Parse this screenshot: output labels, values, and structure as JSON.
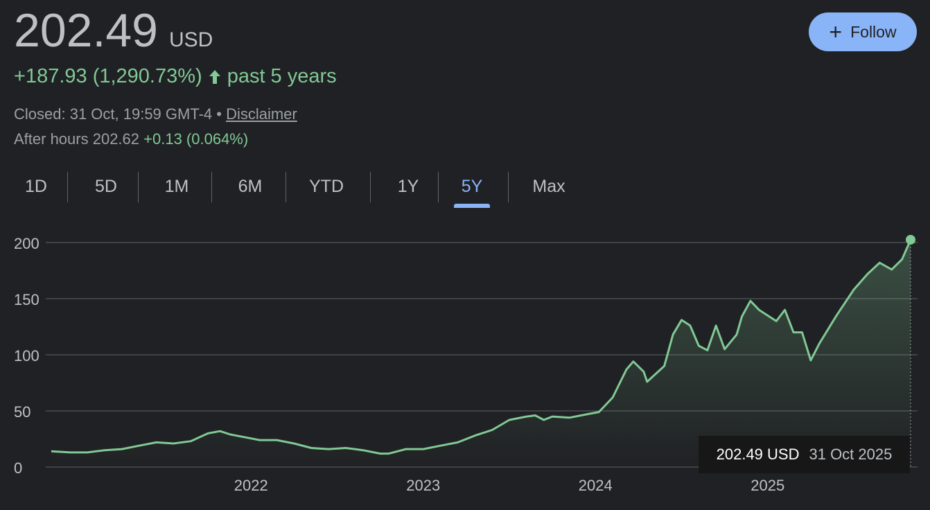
{
  "quote": {
    "price": "202.49",
    "currency": "USD",
    "change": "+187.93 (1,290.73%)",
    "period": "past 5 years",
    "closed": "Closed: 31 Oct, 19:59 GMT-4 • ",
    "disclaimer": "Disclaimer",
    "after_hours_label": "After hours 202.62",
    "after_hours_change": "+0.13 (0.064%)"
  },
  "follow": {
    "label": "Follow",
    "icon": "plus-icon"
  },
  "tabs": [
    {
      "label": "1D",
      "active": false
    },
    {
      "label": "5D",
      "active": false
    },
    {
      "label": "1M",
      "active": false
    },
    {
      "label": "6M",
      "active": false
    },
    {
      "label": "YTD",
      "active": false
    },
    {
      "label": "1Y",
      "active": false
    },
    {
      "label": "5Y",
      "active": true
    },
    {
      "label": "Max",
      "active": false
    }
  ],
  "tooltip": {
    "value": "202.49 USD",
    "date": "31 Oct 2025"
  },
  "colors": {
    "line": "#81c995",
    "accent": "#8ab4f8",
    "background": "#202124"
  },
  "chart_data": {
    "type": "area",
    "xlabel": "",
    "ylabel": "",
    "ylim": [
      0,
      200
    ],
    "yticks": [
      "0",
      "50",
      "100",
      "150",
      "200"
    ],
    "xticks": [
      {
        "label": "2022",
        "x": 2022.0
      },
      {
        "label": "2023",
        "x": 2023.0
      },
      {
        "label": "2024",
        "x": 2024.0
      },
      {
        "label": "2025",
        "x": 2025.0
      }
    ],
    "grid": true,
    "series": [
      {
        "x": [
          2020.84,
          2020.95,
          2021.05,
          2021.15,
          2021.25,
          2021.35,
          2021.45,
          2021.55,
          2021.65,
          2021.75,
          2021.82,
          2021.88,
          2021.95,
          2022.05,
          2022.15,
          2022.25,
          2022.35,
          2022.45,
          2022.55,
          2022.65,
          2022.75,
          2022.8,
          2022.9,
          2023.0,
          2023.1,
          2023.2,
          2023.3,
          2023.4,
          2023.5,
          2023.6,
          2023.65,
          2023.7,
          2023.75,
          2023.85,
          2023.95,
          2024.02,
          2024.1,
          2024.18,
          2024.22,
          2024.28,
          2024.3,
          2024.4,
          2024.45,
          2024.5,
          2024.55,
          2024.6,
          2024.65,
          2024.7,
          2024.75,
          2024.82,
          2024.85,
          2024.9,
          2024.95,
          2025.05,
          2025.1,
          2025.15,
          2025.2,
          2025.25,
          2025.3,
          2025.4,
          2025.5,
          2025.58,
          2025.65,
          2025.72,
          2025.78,
          2025.83
        ],
        "values": [
          14,
          13,
          13,
          15,
          16,
          19,
          22,
          21,
          23,
          30,
          32,
          29,
          27,
          24,
          24,
          21,
          17,
          16,
          17,
          15,
          12,
          12,
          16,
          16,
          19,
          22,
          28,
          33,
          42,
          45,
          46,
          42,
          45,
          44,
          47,
          49,
          62,
          87,
          94,
          85,
          76,
          90,
          118,
          131,
          126,
          108,
          104,
          126,
          105,
          118,
          134,
          148,
          140,
          130,
          140,
          120,
          120,
          95,
          110,
          135,
          158,
          172,
          182,
          176,
          185,
          202.49
        ]
      }
    ],
    "last_point": {
      "x": 2025.83,
      "y": 202.49
    }
  }
}
